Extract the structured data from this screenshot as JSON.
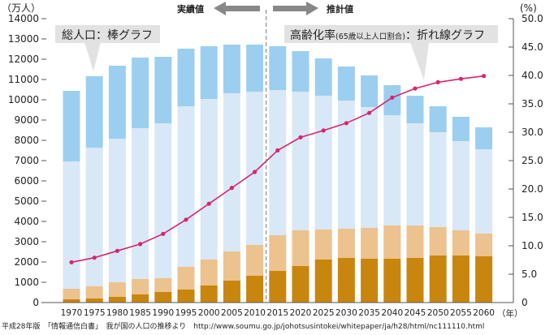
{
  "chart_data": {
    "type": "bar",
    "subtype": "stacked bar with line overlay (dual axis)",
    "categories": [
      "1970",
      "1975",
      "1980",
      "1985",
      "1990",
      "1995",
      "2000",
      "2005",
      "2010",
      "2015",
      "2020",
      "2025",
      "2030",
      "2035",
      "2040",
      "2045",
      "2050",
      "2055",
      "2060"
    ],
    "series": [
      {
        "color": "#c8860f",
        "values": [
          160,
          200,
          280,
          400,
          520,
          640,
          840,
          1080,
          1320,
          1560,
          1800,
          2120,
          2200,
          2160,
          2160,
          2200,
          2320,
          2320,
          2280
        ]
      },
      {
        "color": "#ecc28e",
        "values": [
          520,
          600,
          720,
          760,
          680,
          1120,
          1280,
          1440,
          1520,
          1760,
          1760,
          1480,
          1440,
          1520,
          1640,
          1600,
          1400,
          1240,
          1120
        ]
      },
      {
        "color": "#d8e8f6",
        "values": [
          6280,
          6840,
          7080,
          7440,
          7640,
          7920,
          7920,
          7800,
          7560,
          7160,
          6840,
          6600,
          6320,
          5960,
          5440,
          5040,
          4680,
          4400,
          4160
        ]
      },
      {
        "color": "#9ccfef",
        "values": [
          3480,
          3520,
          3600,
          3480,
          3280,
          2840,
          2600,
          2400,
          2320,
          2160,
          2000,
          1840,
          1680,
          1560,
          1480,
          1360,
          1280,
          1200,
          1080
        ]
      }
    ],
    "line_series": {
      "color": "#d9246e",
      "axis": "right",
      "values": [
        7.1,
        7.9,
        9.1,
        10.3,
        12.1,
        14.6,
        17.4,
        20.2,
        23.0,
        26.8,
        29.1,
        30.3,
        31.6,
        33.4,
        36.1,
        37.7,
        38.8,
        39.4,
        39.9
      ]
    },
    "ylabel": "（万人）",
    "ylim": [
      0,
      14000
    ],
    "yticks": [
      "0",
      "1000",
      "2000",
      "3000",
      "4000",
      "5000",
      "6000",
      "7000",
      "8000",
      "9000",
      "10000",
      "11000",
      "12000",
      "13000",
      "14000"
    ],
    "y2label": "(%)",
    "y2lim": [
      0,
      50
    ],
    "y2ticks": [
      "0",
      "5.0",
      "10.0",
      "15.0",
      "20.0",
      "25.0",
      "30.0",
      "35.0",
      "40.0",
      "45.0",
      "50.0"
    ],
    "xlabel": "（年）",
    "grid": false,
    "annotations": {
      "actual": "実績値",
      "projected": "推計値",
      "bar_callout": "総人口：棒グラフ",
      "line_callout_main": "高齢化率",
      "line_callout_paren": "(65歳以上人口割合)",
      "line_callout_tail": "：折れ線グラフ"
    },
    "divider_after": "2010"
  },
  "footer": {
    "source": "平成28年版　「情報通信白書」　我が国の人口の推移より　http://www.soumu.go.jp/johotsusintokei/whitepaper/ja/h28/html/nc111110.html"
  }
}
